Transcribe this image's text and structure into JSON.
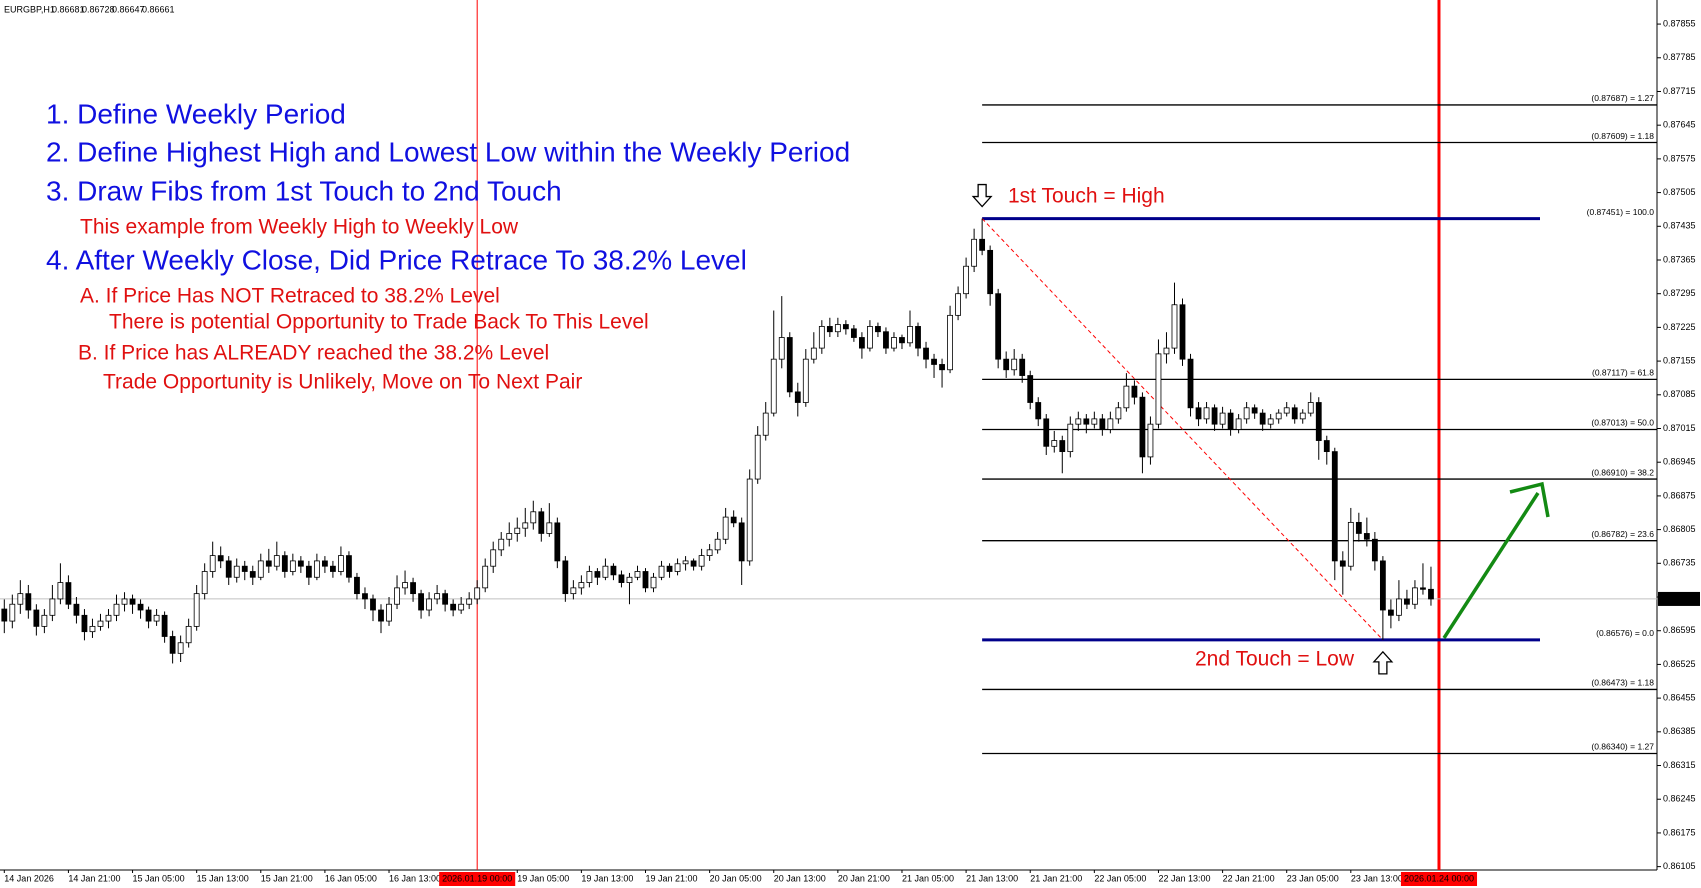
{
  "chart_data": {
    "type": "candlestick",
    "symbol": "EURGBP,H1",
    "notes": [
      "1. Define Weekly Period",
      "2. Define Highest High and Lowest Low within the Weekly Period",
      "3. Draw Fibs from 1st Touch to 2nd Touch",
      "This example from Weekly High to Weekly Low",
      "4. After Weekly Close, Did Price Retrace To 38.2% Level",
      "A. If Price Has NOT Retraced to 38.2% Level",
      "There is potential Opportunity to Trade Back To This Level",
      "B. If Price has ALREADY reached the 38.2% Level",
      "Trade Opportunity is Unlikely, Move on To Next Pair"
    ],
    "touch_labels": [
      "1st Touch = High",
      "2nd Touch = Low"
    ],
    "ylim": [
      0.86098,
      0.87905
    ],
    "yticks": [
      0.87855,
      0.87785,
      0.87715,
      0.87645,
      0.87575,
      0.87505,
      0.87435,
      0.87365,
      0.87295,
      0.87225,
      0.87155,
      0.87085,
      0.87015,
      0.86945,
      0.86875,
      0.86805,
      0.86735,
      0.86665,
      0.86595,
      0.86525,
      0.86455,
      0.86385,
      0.86315,
      0.86245,
      0.86175,
      0.86105
    ],
    "separators": [
      "2026.01.19 00:00",
      "2026.01.24 00:00"
    ],
    "fib_levels": [
      {
        "value": 0.87687,
        "label": "(0.87687) = 1.27"
      },
      {
        "value": 0.87609,
        "label": "(0.87609) = 1.18"
      },
      {
        "value": 0.87451,
        "label": "(0.87451) = 100.0"
      },
      {
        "value": 0.87117,
        "label": "(0.87117) = 61.8"
      },
      {
        "value": 0.87013,
        "label": "(0.87013) = 50.0"
      },
      {
        "value": 0.8691,
        "label": "(0.86910) = 38.2"
      },
      {
        "value": 0.86782,
        "label": "(0.86782) = 23.6"
      },
      {
        "value": 0.86576,
        "label": "(0.86576) = 0.0"
      },
      {
        "value": 0.86473,
        "label": "(0.86473) = 1.18"
      },
      {
        "value": 0.8634,
        "label": "(0.86340) = 1.27"
      }
    ],
    "colors": {
      "bull": "#ffffff",
      "bear": "#000000",
      "wick": "#000000",
      "separator": "#ff0000",
      "fib": "#000000",
      "fib_range": "#00008b",
      "trend": "#ff0000",
      "price_line": "#c0c0c0"
    },
    "categories": [
      "14 Jan 2026",
      null,
      null,
      null,
      null,
      null,
      null,
      null,
      "14 Jan 21:00",
      null,
      null,
      null,
      null,
      null,
      null,
      null,
      "15 Jan 05:00",
      null,
      null,
      null,
      null,
      null,
      null,
      null,
      "15 Jan 13:00",
      null,
      null,
      null,
      null,
      null,
      null,
      null,
      "15 Jan 21:00",
      null,
      null,
      null,
      null,
      null,
      null,
      null,
      "16 Jan 05:00",
      null,
      null,
      null,
      null,
      null,
      null,
      null,
      "16 Jan 13:00",
      null,
      null,
      null,
      null,
      null,
      null,
      null,
      null,
      null,
      null,
      "2026.01.19 00:00",
      null,
      null,
      null,
      null,
      "19 Jan 05:00",
      null,
      null,
      null,
      null,
      null,
      null,
      null,
      "19 Jan 13:00",
      null,
      null,
      null,
      null,
      null,
      null,
      null,
      "19 Jan 21:00",
      null,
      null,
      null,
      null,
      null,
      null,
      null,
      "20 Jan 05:00",
      null,
      null,
      null,
      null,
      null,
      null,
      null,
      "20 Jan 13:00",
      null,
      null,
      null,
      null,
      null,
      null,
      null,
      "20 Jan 21:00",
      null,
      null,
      null,
      null,
      null,
      null,
      null,
      "21 Jan 05:00",
      null,
      null,
      null,
      null,
      null,
      null,
      null,
      "21 Jan 13:00",
      null,
      null,
      null,
      null,
      null,
      null,
      null,
      "21 Jan 21:00",
      null,
      null,
      null,
      null,
      null,
      null,
      null,
      "22 Jan 05:00",
      null,
      null,
      null,
      null,
      null,
      null,
      null,
      "22 Jan 13:00",
      null,
      null,
      null,
      null,
      null,
      null,
      null,
      "22 Jan 21:00",
      null,
      null,
      null,
      null,
      null,
      null,
      null,
      "23 Jan 05:00",
      null,
      null,
      null,
      null,
      null,
      null,
      null,
      "23 Jan 13:00",
      null,
      null,
      null,
      null,
      null,
      null,
      null,
      null,
      null,
      null,
      "2026.01.24 00:00"
    ],
    "candles": [
      [
        0.8664,
        0.8666,
        0.8659,
        0.86615
      ],
      [
        0.86615,
        0.8667,
        0.866,
        0.8665
      ],
      [
        0.8665,
        0.867,
        0.8663,
        0.86672
      ],
      [
        0.86672,
        0.8669,
        0.8662,
        0.86638
      ],
      [
        0.86638,
        0.8665,
        0.86585,
        0.86604
      ],
      [
        0.86604,
        0.8664,
        0.8659,
        0.86627
      ],
      [
        0.86627,
        0.8669,
        0.86615,
        0.86661
      ],
      [
        0.86661,
        0.86735,
        0.8665,
        0.86695
      ],
      [
        0.86695,
        0.8671,
        0.8664,
        0.8665
      ],
      [
        0.8665,
        0.86665,
        0.8661,
        0.86627
      ],
      [
        0.86627,
        0.8664,
        0.86575,
        0.86593
      ],
      [
        0.86593,
        0.8662,
        0.8658,
        0.86604
      ],
      [
        0.86604,
        0.8663,
        0.86595,
        0.86615
      ],
      [
        0.86615,
        0.8664,
        0.866,
        0.86627
      ],
      [
        0.86627,
        0.8667,
        0.86615,
        0.8665
      ],
      [
        0.8665,
        0.86675,
        0.86635,
        0.86661
      ],
      [
        0.86661,
        0.8667,
        0.8663,
        0.8665
      ],
      [
        0.8665,
        0.8666,
        0.8662,
        0.86638
      ],
      [
        0.86638,
        0.86645,
        0.866,
        0.86615
      ],
      [
        0.86615,
        0.8664,
        0.86605,
        0.86627
      ],
      [
        0.86627,
        0.86635,
        0.8657,
        0.86583
      ],
      [
        0.86583,
        0.86595,
        0.86527,
        0.86548
      ],
      [
        0.86548,
        0.86585,
        0.8653,
        0.8657
      ],
      [
        0.8657,
        0.8662,
        0.8656,
        0.86604
      ],
      [
        0.86604,
        0.8669,
        0.86595,
        0.86672
      ],
      [
        0.86672,
        0.86735,
        0.8666,
        0.86718
      ],
      [
        0.86718,
        0.8678,
        0.86705,
        0.86751
      ],
      [
        0.86751,
        0.8677,
        0.86725,
        0.8674
      ],
      [
        0.8674,
        0.8675,
        0.8669,
        0.86706
      ],
      [
        0.86706,
        0.86745,
        0.86695,
        0.86729
      ],
      [
        0.86729,
        0.8674,
        0.867,
        0.86718
      ],
      [
        0.86718,
        0.8673,
        0.8669,
        0.86706
      ],
      [
        0.86706,
        0.86755,
        0.867,
        0.8674
      ],
      [
        0.8674,
        0.86765,
        0.86715,
        0.86729
      ],
      [
        0.86729,
        0.8678,
        0.8672,
        0.86751
      ],
      [
        0.86751,
        0.8676,
        0.86705,
        0.86718
      ],
      [
        0.86718,
        0.86755,
        0.8671,
        0.8674
      ],
      [
        0.8674,
        0.8675,
        0.86715,
        0.86729
      ],
      [
        0.86729,
        0.8674,
        0.8669,
        0.86706
      ],
      [
        0.86706,
        0.86755,
        0.867,
        0.8674
      ],
      [
        0.8674,
        0.8675,
        0.86715,
        0.86729
      ],
      [
        0.86729,
        0.8674,
        0.86705,
        0.86718
      ],
      [
        0.86718,
        0.8677,
        0.8671,
        0.86751
      ],
      [
        0.86751,
        0.8676,
        0.86695,
        0.86706
      ],
      [
        0.86706,
        0.86715,
        0.8666,
        0.86672
      ],
      [
        0.86672,
        0.86685,
        0.8664,
        0.86661
      ],
      [
        0.86661,
        0.8667,
        0.86615,
        0.86638
      ],
      [
        0.86638,
        0.8665,
        0.8659,
        0.86615
      ],
      [
        0.86615,
        0.86665,
        0.86605,
        0.8665
      ],
      [
        0.8665,
        0.8671,
        0.8664,
        0.86684
      ],
      [
        0.86684,
        0.8672,
        0.8667,
        0.86695
      ],
      [
        0.86695,
        0.86705,
        0.86655,
        0.86672
      ],
      [
        0.86672,
        0.8668,
        0.8662,
        0.86638
      ],
      [
        0.86638,
        0.86675,
        0.86625,
        0.86661
      ],
      [
        0.86661,
        0.8669,
        0.8665,
        0.86672
      ],
      [
        0.86672,
        0.8668,
        0.86635,
        0.8665
      ],
      [
        0.8665,
        0.8666,
        0.86625,
        0.86638
      ],
      [
        0.86638,
        0.86665,
        0.8663,
        0.8665
      ],
      [
        0.8665,
        0.86675,
        0.8664,
        0.86661
      ],
      [
        0.86661,
        0.867,
        0.8665,
        0.86684
      ],
      [
        0.86684,
        0.86745,
        0.86675,
        0.86729
      ],
      [
        0.86729,
        0.8678,
        0.86715,
        0.86763
      ],
      [
        0.86763,
        0.868,
        0.8675,
        0.86785
      ],
      [
        0.86785,
        0.8682,
        0.8677,
        0.86797
      ],
      [
        0.86797,
        0.8683,
        0.8678,
        0.86808
      ],
      [
        0.86808,
        0.8685,
        0.8679,
        0.86819
      ],
      [
        0.86819,
        0.86865,
        0.86805,
        0.86842
      ],
      [
        0.86842,
        0.8685,
        0.8678,
        0.86797
      ],
      [
        0.86797,
        0.8686,
        0.8679,
        0.86819
      ],
      [
        0.86819,
        0.8683,
        0.86725,
        0.8674
      ],
      [
        0.8674,
        0.8675,
        0.86655,
        0.86672
      ],
      [
        0.86672,
        0.867,
        0.8666,
        0.86684
      ],
      [
        0.86684,
        0.8671,
        0.8667,
        0.86695
      ],
      [
        0.86695,
        0.8673,
        0.86685,
        0.86718
      ],
      [
        0.86718,
        0.86725,
        0.8669,
        0.86706
      ],
      [
        0.86706,
        0.86745,
        0.867,
        0.86729
      ],
      [
        0.86729,
        0.86735,
        0.867,
        0.86711
      ],
      [
        0.86711,
        0.8672,
        0.86685,
        0.86695
      ],
      [
        0.86695,
        0.86715,
        0.8665,
        0.86706
      ],
      [
        0.86706,
        0.8673,
        0.867,
        0.86718
      ],
      [
        0.86718,
        0.86725,
        0.86675,
        0.86684
      ],
      [
        0.86684,
        0.86715,
        0.86675,
        0.86706
      ],
      [
        0.86706,
        0.8674,
        0.867,
        0.86729
      ],
      [
        0.86729,
        0.86735,
        0.86705,
        0.86718
      ],
      [
        0.86718,
        0.86745,
        0.8671,
        0.86734
      ],
      [
        0.86734,
        0.8675,
        0.8672,
        0.8674
      ],
      [
        0.8674,
        0.86745,
        0.8672,
        0.86729
      ],
      [
        0.86729,
        0.86765,
        0.8672,
        0.86751
      ],
      [
        0.86751,
        0.86775,
        0.8674,
        0.86763
      ],
      [
        0.86763,
        0.868,
        0.86755,
        0.86785
      ],
      [
        0.86785,
        0.8685,
        0.86775,
        0.86831
      ],
      [
        0.86831,
        0.86845,
        0.8681,
        0.86819
      ],
      [
        0.86819,
        0.8683,
        0.8669,
        0.8674
      ],
      [
        0.8674,
        0.8693,
        0.8673,
        0.8691
      ],
      [
        0.8691,
        0.8702,
        0.869,
        0.87001
      ],
      [
        0.87001,
        0.8707,
        0.8699,
        0.87047
      ],
      [
        0.87047,
        0.8726,
        0.8704,
        0.87159
      ],
      [
        0.87159,
        0.8729,
        0.8714,
        0.87204
      ],
      [
        0.87204,
        0.87215,
        0.8708,
        0.87091
      ],
      [
        0.87091,
        0.8711,
        0.8704,
        0.87069
      ],
      [
        0.87069,
        0.8718,
        0.8706,
        0.87159
      ],
      [
        0.87159,
        0.87215,
        0.8715,
        0.87182
      ],
      [
        0.87182,
        0.8724,
        0.8717,
        0.87227
      ],
      [
        0.87227,
        0.87245,
        0.87205,
        0.87216
      ],
      [
        0.87216,
        0.87245,
        0.87205,
        0.87231
      ],
      [
        0.87231,
        0.8724,
        0.8721,
        0.87222
      ],
      [
        0.87222,
        0.8723,
        0.87195,
        0.87204
      ],
      [
        0.87204,
        0.87215,
        0.8716,
        0.87182
      ],
      [
        0.87182,
        0.8724,
        0.87175,
        0.87227
      ],
      [
        0.87227,
        0.87235,
        0.87205,
        0.87216
      ],
      [
        0.87216,
        0.87225,
        0.8717,
        0.87182
      ],
      [
        0.87182,
        0.87215,
        0.87175,
        0.87204
      ],
      [
        0.87204,
        0.8721,
        0.8718,
        0.87193
      ],
      [
        0.87193,
        0.8726,
        0.87185,
        0.87227
      ],
      [
        0.87227,
        0.87235,
        0.87165,
        0.87182
      ],
      [
        0.87182,
        0.87195,
        0.8714,
        0.87159
      ],
      [
        0.87159,
        0.8717,
        0.8712,
        0.87148
      ],
      [
        0.87148,
        0.8716,
        0.871,
        0.87137
      ],
      [
        0.87137,
        0.8727,
        0.8713,
        0.8725
      ],
      [
        0.8725,
        0.8731,
        0.8724,
        0.87295
      ],
      [
        0.87295,
        0.8737,
        0.87285,
        0.87352
      ],
      [
        0.87352,
        0.8743,
        0.8734,
        0.87408
      ],
      [
        0.87408,
        0.87451,
        0.87375,
        0.87385
      ],
      [
        0.87385,
        0.87395,
        0.8727,
        0.87295
      ],
      [
        0.87295,
        0.87305,
        0.8714,
        0.87159
      ],
      [
        0.87159,
        0.87175,
        0.8712,
        0.87137
      ],
      [
        0.87137,
        0.8718,
        0.87125,
        0.87159
      ],
      [
        0.87159,
        0.8717,
        0.8711,
        0.87125
      ],
      [
        0.87125,
        0.87135,
        0.87055,
        0.87069
      ],
      [
        0.87069,
        0.8708,
        0.8702,
        0.87035
      ],
      [
        0.87035,
        0.87045,
        0.8696,
        0.86978
      ],
      [
        0.86978,
        0.8701,
        0.86965,
        0.8699
      ],
      [
        0.8699,
        0.87,
        0.86922,
        0.86967
      ],
      [
        0.86967,
        0.8704,
        0.86955,
        0.87024
      ],
      [
        0.87024,
        0.8705,
        0.8701,
        0.87035
      ],
      [
        0.87035,
        0.87045,
        0.87005,
        0.87024
      ],
      [
        0.87024,
        0.8705,
        0.87015,
        0.87035
      ],
      [
        0.87035,
        0.87045,
        0.87,
        0.87013
      ],
      [
        0.87013,
        0.8705,
        0.87005,
        0.87035
      ],
      [
        0.87035,
        0.8707,
        0.87025,
        0.87058
      ],
      [
        0.87058,
        0.8713,
        0.8705,
        0.87103
      ],
      [
        0.87103,
        0.87115,
        0.87065,
        0.8708
      ],
      [
        0.8708,
        0.8709,
        0.86922,
        0.86956
      ],
      [
        0.86956,
        0.8704,
        0.8694,
        0.87024
      ],
      [
        0.87024,
        0.872,
        0.87015,
        0.8717
      ],
      [
        0.8717,
        0.87215,
        0.8715,
        0.87182
      ],
      [
        0.87182,
        0.87318,
        0.8717,
        0.87272
      ],
      [
        0.87272,
        0.87285,
        0.87145,
        0.87159
      ],
      [
        0.87159,
        0.8717,
        0.8704,
        0.87058
      ],
      [
        0.87058,
        0.8707,
        0.8702,
        0.87035
      ],
      [
        0.87035,
        0.8707,
        0.87025,
        0.87058
      ],
      [
        0.87058,
        0.87065,
        0.8701,
        0.87024
      ],
      [
        0.87024,
        0.8706,
        0.87015,
        0.87047
      ],
      [
        0.87047,
        0.87055,
        0.87,
        0.87013
      ],
      [
        0.87013,
        0.87045,
        0.87005,
        0.87035
      ],
      [
        0.87035,
        0.8707,
        0.87025,
        0.87058
      ],
      [
        0.87058,
        0.87065,
        0.87035,
        0.87047
      ],
      [
        0.87047,
        0.87055,
        0.8701,
        0.87024
      ],
      [
        0.87024,
        0.87045,
        0.87015,
        0.87035
      ],
      [
        0.87035,
        0.87055,
        0.87025,
        0.87047
      ],
      [
        0.87047,
        0.8707,
        0.8704,
        0.87058
      ],
      [
        0.87058,
        0.87065,
        0.87025,
        0.87035
      ],
      [
        0.87035,
        0.87055,
        0.87025,
        0.87047
      ],
      [
        0.87047,
        0.8709,
        0.8704,
        0.87069
      ],
      [
        0.87069,
        0.8708,
        0.8695,
        0.8699
      ],
      [
        0.8699,
        0.87,
        0.8694,
        0.86967
      ],
      [
        0.86967,
        0.86975,
        0.867,
        0.8674
      ],
      [
        0.8674,
        0.8676,
        0.8667,
        0.86729
      ],
      [
        0.86729,
        0.8685,
        0.8672,
        0.8682
      ],
      [
        0.8682,
        0.8684,
        0.8678,
        0.86797
      ],
      [
        0.86797,
        0.8683,
        0.8677,
        0.86785
      ],
      [
        0.86785,
        0.868,
        0.8672,
        0.8674
      ],
      [
        0.8674,
        0.8675,
        0.86576,
        0.86638
      ],
      [
        0.86638,
        0.8666,
        0.866,
        0.86627
      ],
      [
        0.86627,
        0.867,
        0.86615,
        0.86661
      ],
      [
        0.86661,
        0.8668,
        0.8664,
        0.8665
      ],
      [
        0.8665,
        0.867,
        0.8664,
        0.86684
      ],
      [
        0.86684,
        0.86735,
        0.8667,
        0.86681
      ],
      [
        0.86681,
        0.86728,
        0.86647,
        0.86661
      ],
      null
    ]
  }
}
